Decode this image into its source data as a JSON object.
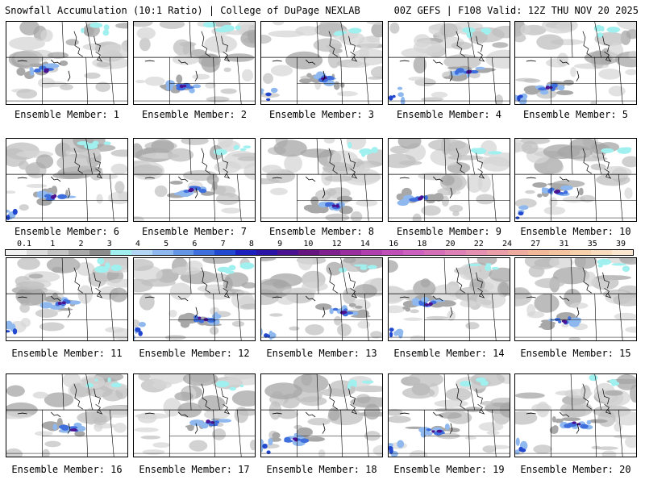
{
  "header": {
    "left": "Snowfall Accumulation (10:1 Ratio) | College of DuPage NEXLAB",
    "right": "00Z GEFS | F108 Valid: 12Z THU NOV 20 2025"
  },
  "colorbar": {
    "labels": [
      "0.1",
      "1",
      "2",
      "3",
      "4",
      "5",
      "6",
      "7",
      "8",
      "9",
      "10",
      "12",
      "14",
      "16",
      "18",
      "20",
      "22",
      "24",
      "27",
      "31",
      "35",
      "39"
    ],
    "colors": [
      "#f2f2f2",
      "#dcdcdc",
      "#c4c4c4",
      "#a8a8a8",
      "#8c8c8c",
      "#9ff0ee",
      "#b4d6f5",
      "#8fb8ef",
      "#6596e6",
      "#3f6fdd",
      "#2248d0",
      "#1a1fbe",
      "#2a14a6",
      "#4a1190",
      "#66147f",
      "#80208f",
      "#9a309f",
      "#b040ae",
      "#c04fb8",
      "#cc60bf",
      "#d46fb8",
      "#dc80b5",
      "#e490b2",
      "#ea9ea8",
      "#eeac9e",
      "#f1b899",
      "#f4c4a0",
      "#f7d0ac",
      "#f9dbbd",
      "#fbe6cf"
    ]
  },
  "members": [
    {
      "label": "Ensemble Member: 1"
    },
    {
      "label": "Ensemble Member: 2"
    },
    {
      "label": "Ensemble Member: 3"
    },
    {
      "label": "Ensemble Member: 4"
    },
    {
      "label": "Ensemble Member: 5"
    },
    {
      "label": "Ensemble Member: 6"
    },
    {
      "label": "Ensemble Member: 7"
    },
    {
      "label": "Ensemble Member: 8"
    },
    {
      "label": "Ensemble Member: 9"
    },
    {
      "label": "Ensemble Member: 10"
    },
    {
      "label": "Ensemble Member: 11"
    },
    {
      "label": "Ensemble Member: 12"
    },
    {
      "label": "Ensemble Member: 13"
    },
    {
      "label": "Ensemble Member: 14"
    },
    {
      "label": "Ensemble Member: 15"
    },
    {
      "label": "Ensemble Member: 16"
    },
    {
      "label": "Ensemble Member: 17"
    },
    {
      "label": "Ensemble Member: 18"
    },
    {
      "label": "Ensemble Member: 19"
    },
    {
      "label": "Ensemble Member: 20"
    }
  ]
}
